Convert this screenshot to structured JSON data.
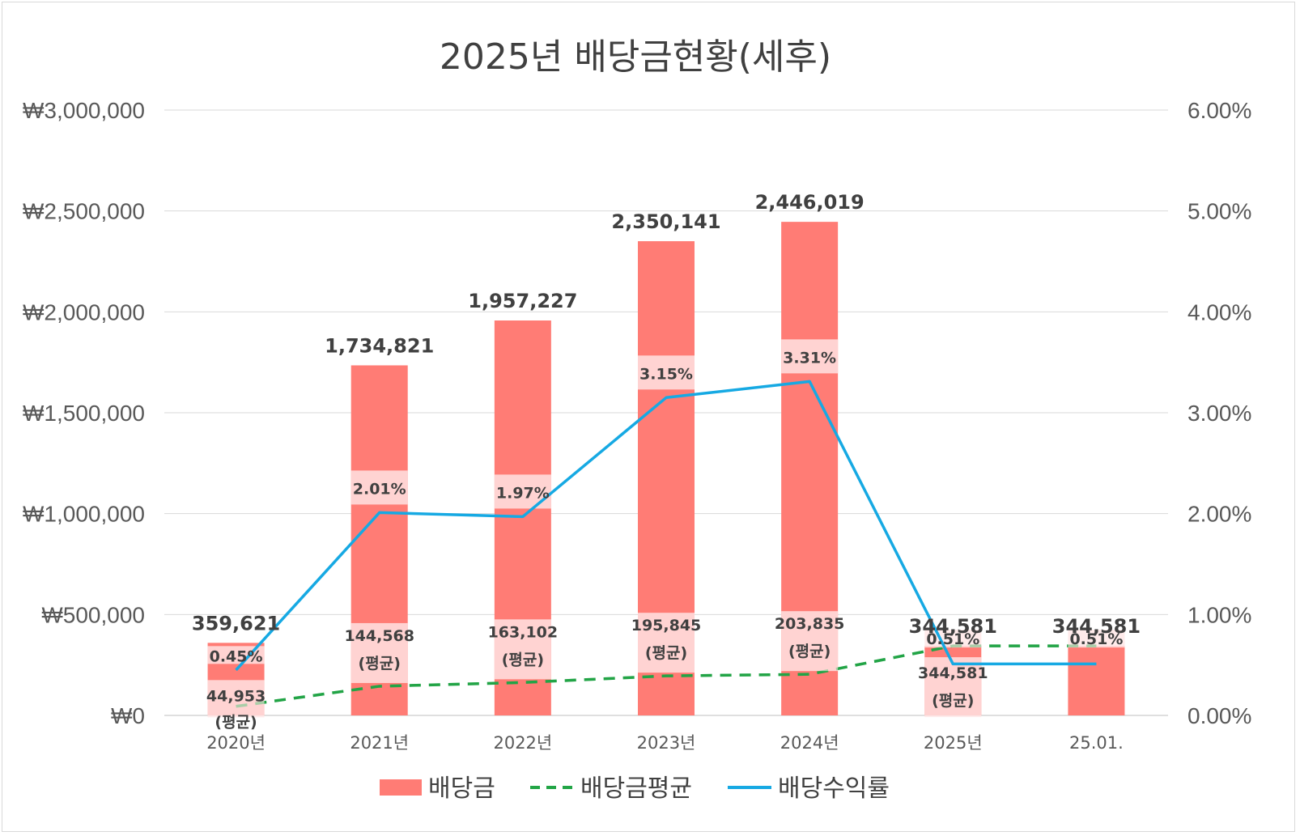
{
  "chart_data": {
    "type": "bar",
    "title": "2025년 배당금현황(세후)",
    "categories": [
      "2020년",
      "2021년",
      "2022년",
      "2023년",
      "2024년",
      "2025년",
      "25.01."
    ],
    "y_left": {
      "ticks": [
        "₩0",
        "₩500,000",
        "₩1,000,000",
        "₩1,500,000",
        "₩2,000,000",
        "₩2,500,000",
        "₩3,000,000"
      ],
      "ylim": [
        0,
        3000000
      ]
    },
    "y_right": {
      "ticks": [
        "0.00%",
        "1.00%",
        "2.00%",
        "3.00%",
        "4.00%",
        "5.00%",
        "6.00%"
      ],
      "ylim": [
        0,
        6
      ]
    },
    "grid": true,
    "legend_position": "bottom",
    "series": [
      {
        "name": "배당금",
        "kind": "bar",
        "color": "#ff7c75",
        "values": [
          359621,
          1734821,
          1957227,
          2350141,
          2446019,
          344581,
          344581
        ],
        "labels": [
          "359,621",
          "1,734,821",
          "1,957,227",
          "2,350,141",
          "2,446,019",
          "344,581",
          "344,581"
        ]
      },
      {
        "name": "배당금평균",
        "kind": "line-dashed",
        "color": "#22a546",
        "values": [
          44953,
          144568,
          163102,
          195845,
          203835,
          344581,
          344581
        ],
        "labels": [
          "44,953",
          "144,568",
          "163,102",
          "195,845",
          "203,835",
          "344,581",
          null
        ],
        "label_suffix": "(평균)"
      },
      {
        "name": "배당수익률",
        "kind": "line",
        "axis": "right",
        "color": "#16a9e3",
        "values": [
          0.45,
          2.01,
          1.97,
          3.15,
          3.31,
          0.51,
          0.51
        ],
        "labels": [
          "0.45%",
          "2.01%",
          "1.97%",
          "3.15%",
          "3.31%",
          "0.51%",
          "0.51%"
        ]
      }
    ]
  }
}
